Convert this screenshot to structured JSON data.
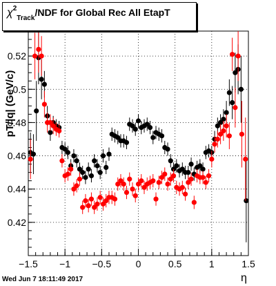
{
  "title": {
    "chi": "χ",
    "sup": "2",
    "sub": "Track",
    "rest": "/NDF for Global Rec All EtapT"
  },
  "timestamp": "Wed Jun  7 18:11:49 2017",
  "chart_data": {
    "type": "scatter",
    "xlabel": "η",
    "ylabel": "pT/|q| (GeV/c)",
    "xlim": [
      -1.5,
      1.5
    ],
    "ylim": [
      0.4,
      0.535
    ],
    "x_ticks": [
      "−1.5",
      "−1",
      "−0.5",
      "0",
      "0.5",
      "1",
      "1.5"
    ],
    "y_ticks": [
      "0.42",
      "0.44",
      "0.46",
      "0.48",
      "0.5",
      "0.52"
    ],
    "grid": true,
    "series": [
      {
        "color": "#000000",
        "points": [
          {
            "x": -1.47,
            "y": 0.462,
            "err": 0.012
          },
          {
            "x": -1.43,
            "y": 0.461,
            "err": 0.012
          },
          {
            "x": -1.39,
            "y": 0.487,
            "err": 0.018
          },
          {
            "x": -1.36,
            "y": 0.519,
            "err": 0.016
          },
          {
            "x": -1.32,
            "y": 0.506,
            "err": 0.012
          },
          {
            "x": -1.28,
            "y": 0.503,
            "err": 0.008
          },
          {
            "x": -1.24,
            "y": 0.484,
            "err": 0.006
          },
          {
            "x": -1.2,
            "y": 0.474,
            "err": 0.005
          },
          {
            "x": -1.16,
            "y": 0.48,
            "err": 0.004
          },
          {
            "x": -1.12,
            "y": 0.478,
            "err": 0.004
          },
          {
            "x": -1.08,
            "y": 0.477,
            "err": 0.004
          },
          {
            "x": -1.04,
            "y": 0.465,
            "err": 0.004
          },
          {
            "x": -1.0,
            "y": 0.464,
            "err": 0.004
          },
          {
            "x": -0.96,
            "y": 0.462,
            "err": 0.004
          },
          {
            "x": -0.92,
            "y": 0.454,
            "err": 0.004
          },
          {
            "x": -0.88,
            "y": 0.46,
            "err": 0.004
          },
          {
            "x": -0.84,
            "y": 0.457,
            "err": 0.004
          },
          {
            "x": -0.8,
            "y": 0.452,
            "err": 0.004
          },
          {
            "x": -0.76,
            "y": 0.45,
            "err": 0.004
          },
          {
            "x": -0.72,
            "y": 0.447,
            "err": 0.004
          },
          {
            "x": -0.68,
            "y": 0.452,
            "err": 0.004
          },
          {
            "x": -0.64,
            "y": 0.448,
            "err": 0.004
          },
          {
            "x": -0.6,
            "y": 0.457,
            "err": 0.004
          },
          {
            "x": -0.56,
            "y": 0.454,
            "err": 0.004
          },
          {
            "x": -0.52,
            "y": 0.45,
            "err": 0.004
          },
          {
            "x": -0.48,
            "y": 0.46,
            "err": 0.004
          },
          {
            "x": -0.44,
            "y": 0.453,
            "err": 0.004
          },
          {
            "x": -0.4,
            "y": 0.461,
            "err": 0.004
          },
          {
            "x": -0.36,
            "y": 0.473,
            "err": 0.004
          },
          {
            "x": -0.32,
            "y": 0.472,
            "err": 0.004
          },
          {
            "x": -0.28,
            "y": 0.471,
            "err": 0.004
          },
          {
            "x": -0.24,
            "y": 0.469,
            "err": 0.004
          },
          {
            "x": -0.2,
            "y": 0.469,
            "err": 0.004
          },
          {
            "x": -0.16,
            "y": 0.468,
            "err": 0.004
          },
          {
            "x": -0.12,
            "y": 0.479,
            "err": 0.004
          },
          {
            "x": -0.08,
            "y": 0.478,
            "err": 0.004
          },
          {
            "x": -0.04,
            "y": 0.476,
            "err": 0.004
          },
          {
            "x": 0.0,
            "y": 0.481,
            "err": 0.004
          },
          {
            "x": 0.04,
            "y": 0.477,
            "err": 0.004
          },
          {
            "x": 0.08,
            "y": 0.478,
            "err": 0.004
          },
          {
            "x": 0.12,
            "y": 0.479,
            "err": 0.004
          },
          {
            "x": 0.16,
            "y": 0.477,
            "err": 0.004
          },
          {
            "x": 0.2,
            "y": 0.471,
            "err": 0.004
          },
          {
            "x": 0.24,
            "y": 0.474,
            "err": 0.004
          },
          {
            "x": 0.28,
            "y": 0.473,
            "err": 0.004
          },
          {
            "x": 0.32,
            "y": 0.472,
            "err": 0.004
          },
          {
            "x": 0.36,
            "y": 0.465,
            "err": 0.004
          },
          {
            "x": 0.4,
            "y": 0.464,
            "err": 0.004
          },
          {
            "x": 0.44,
            "y": 0.457,
            "err": 0.004
          },
          {
            "x": 0.48,
            "y": 0.452,
            "err": 0.004
          },
          {
            "x": 0.52,
            "y": 0.454,
            "err": 0.004
          },
          {
            "x": 0.56,
            "y": 0.451,
            "err": 0.004
          },
          {
            "x": 0.6,
            "y": 0.452,
            "err": 0.004
          },
          {
            "x": 0.64,
            "y": 0.45,
            "err": 0.004
          },
          {
            "x": 0.68,
            "y": 0.45,
            "err": 0.004
          },
          {
            "x": 0.72,
            "y": 0.455,
            "err": 0.004
          },
          {
            "x": 0.76,
            "y": 0.449,
            "err": 0.004
          },
          {
            "x": 0.8,
            "y": 0.453,
            "err": 0.004
          },
          {
            "x": 0.84,
            "y": 0.454,
            "err": 0.004
          },
          {
            "x": 0.88,
            "y": 0.452,
            "err": 0.004
          },
          {
            "x": 0.92,
            "y": 0.462,
            "err": 0.004
          },
          {
            "x": 0.96,
            "y": 0.463,
            "err": 0.004
          },
          {
            "x": 1.0,
            "y": 0.462,
            "err": 0.004
          },
          {
            "x": 1.04,
            "y": 0.47,
            "err": 0.005
          },
          {
            "x": 1.08,
            "y": 0.478,
            "err": 0.005
          },
          {
            "x": 1.12,
            "y": 0.48,
            "err": 0.005
          },
          {
            "x": 1.16,
            "y": 0.482,
            "err": 0.006
          },
          {
            "x": 1.2,
            "y": 0.486,
            "err": 0.007
          },
          {
            "x": 1.24,
            "y": 0.498,
            "err": 0.008
          },
          {
            "x": 1.28,
            "y": 0.492,
            "err": 0.01
          },
          {
            "x": 1.32,
            "y": 0.51,
            "err": 0.012
          },
          {
            "x": 1.36,
            "y": 0.512,
            "err": 0.015
          },
          {
            "x": 1.4,
            "y": 0.5,
            "err": 0.02
          },
          {
            "x": 1.47,
            "y": 0.433,
            "err": 0.025
          }
        ]
      },
      {
        "color": "#ff0000",
        "points": [
          {
            "x": -1.47,
            "y": 0.458,
            "err": 0.012
          },
          {
            "x": -1.41,
            "y": 0.52,
            "err": 0.014
          },
          {
            "x": -1.36,
            "y": 0.524,
            "err": 0.014
          },
          {
            "x": -1.32,
            "y": 0.52,
            "err": 0.012
          },
          {
            "x": -1.28,
            "y": 0.491,
            "err": 0.008
          },
          {
            "x": -1.24,
            "y": 0.48,
            "err": 0.006
          },
          {
            "x": -1.2,
            "y": 0.48,
            "err": 0.005
          },
          {
            "x": -1.16,
            "y": 0.478,
            "err": 0.005
          },
          {
            "x": -1.12,
            "y": 0.476,
            "err": 0.004
          },
          {
            "x": -1.08,
            "y": 0.475,
            "err": 0.004
          },
          {
            "x": -1.04,
            "y": 0.457,
            "err": 0.004
          },
          {
            "x": -1.0,
            "y": 0.448,
            "err": 0.004
          },
          {
            "x": -0.96,
            "y": 0.449,
            "err": 0.004
          },
          {
            "x": -0.92,
            "y": 0.452,
            "err": 0.004
          },
          {
            "x": -0.88,
            "y": 0.44,
            "err": 0.004
          },
          {
            "x": -0.84,
            "y": 0.442,
            "err": 0.004
          },
          {
            "x": -0.8,
            "y": 0.446,
            "err": 0.004
          },
          {
            "x": -0.76,
            "y": 0.429,
            "err": 0.004
          },
          {
            "x": -0.72,
            "y": 0.433,
            "err": 0.004
          },
          {
            "x": -0.68,
            "y": 0.43,
            "err": 0.004
          },
          {
            "x": -0.64,
            "y": 0.434,
            "err": 0.004
          },
          {
            "x": -0.6,
            "y": 0.429,
            "err": 0.004
          },
          {
            "x": -0.56,
            "y": 0.431,
            "err": 0.004
          },
          {
            "x": -0.52,
            "y": 0.435,
            "err": 0.004
          },
          {
            "x": -0.48,
            "y": 0.431,
            "err": 0.004
          },
          {
            "x": -0.44,
            "y": 0.433,
            "err": 0.004
          },
          {
            "x": -0.4,
            "y": 0.435,
            "err": 0.004
          },
          {
            "x": -0.36,
            "y": 0.435,
            "err": 0.004
          },
          {
            "x": -0.32,
            "y": 0.434,
            "err": 0.004
          },
          {
            "x": -0.28,
            "y": 0.443,
            "err": 0.004
          },
          {
            "x": -0.24,
            "y": 0.445,
            "err": 0.004
          },
          {
            "x": -0.2,
            "y": 0.443,
            "err": 0.004
          },
          {
            "x": -0.16,
            "y": 0.438,
            "err": 0.004
          },
          {
            "x": -0.12,
            "y": 0.446,
            "err": 0.004
          },
          {
            "x": -0.08,
            "y": 0.44,
            "err": 0.004
          },
          {
            "x": -0.04,
            "y": 0.436,
            "err": 0.004
          },
          {
            "x": 0.0,
            "y": 0.443,
            "err": 0.004
          },
          {
            "x": 0.04,
            "y": 0.445,
            "err": 0.004
          },
          {
            "x": 0.08,
            "y": 0.441,
            "err": 0.004
          },
          {
            "x": 0.12,
            "y": 0.443,
            "err": 0.004
          },
          {
            "x": 0.16,
            "y": 0.444,
            "err": 0.004
          },
          {
            "x": 0.2,
            "y": 0.445,
            "err": 0.004
          },
          {
            "x": 0.24,
            "y": 0.434,
            "err": 0.004
          },
          {
            "x": 0.28,
            "y": 0.444,
            "err": 0.004
          },
          {
            "x": 0.32,
            "y": 0.447,
            "err": 0.004
          },
          {
            "x": 0.36,
            "y": 0.449,
            "err": 0.004
          },
          {
            "x": 0.4,
            "y": 0.443,
            "err": 0.004
          },
          {
            "x": 0.44,
            "y": 0.446,
            "err": 0.004
          },
          {
            "x": 0.48,
            "y": 0.448,
            "err": 0.004
          },
          {
            "x": 0.52,
            "y": 0.441,
            "err": 0.004
          },
          {
            "x": 0.56,
            "y": 0.44,
            "err": 0.004
          },
          {
            "x": 0.6,
            "y": 0.441,
            "err": 0.004
          },
          {
            "x": 0.64,
            "y": 0.437,
            "err": 0.004
          },
          {
            "x": 0.68,
            "y": 0.444,
            "err": 0.004
          },
          {
            "x": 0.72,
            "y": 0.446,
            "err": 0.004
          },
          {
            "x": 0.76,
            "y": 0.432,
            "err": 0.004
          },
          {
            "x": 0.8,
            "y": 0.448,
            "err": 0.004
          },
          {
            "x": 0.84,
            "y": 0.447,
            "err": 0.004
          },
          {
            "x": 0.88,
            "y": 0.447,
            "err": 0.004
          },
          {
            "x": 0.92,
            "y": 0.444,
            "err": 0.004
          },
          {
            "x": 0.96,
            "y": 0.448,
            "err": 0.004
          },
          {
            "x": 1.0,
            "y": 0.458,
            "err": 0.005
          },
          {
            "x": 1.04,
            "y": 0.467,
            "err": 0.005
          },
          {
            "x": 1.08,
            "y": 0.47,
            "err": 0.005
          },
          {
            "x": 1.12,
            "y": 0.473,
            "err": 0.006
          },
          {
            "x": 1.16,
            "y": 0.475,
            "err": 0.006
          },
          {
            "x": 1.2,
            "y": 0.478,
            "err": 0.007
          },
          {
            "x": 1.24,
            "y": 0.472,
            "err": 0.008
          },
          {
            "x": 1.28,
            "y": 0.521,
            "err": 0.01
          },
          {
            "x": 1.32,
            "y": 0.489,
            "err": 0.012
          },
          {
            "x": 1.36,
            "y": 0.52,
            "err": 0.015
          },
          {
            "x": 1.41,
            "y": 0.473,
            "err": 0.02
          },
          {
            "x": 1.46,
            "y": 0.458,
            "err": 0.025
          }
        ]
      }
    ]
  }
}
